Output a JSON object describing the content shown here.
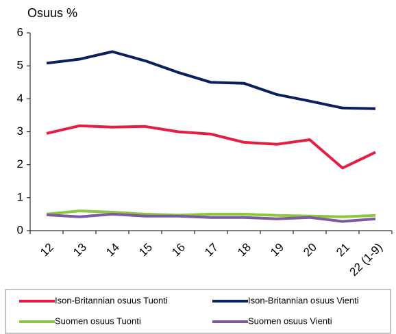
{
  "chart_data": {
    "type": "line",
    "y_label": "Osuus %",
    "categories": [
      "12",
      "13",
      "14",
      "15",
      "16",
      "17",
      "18",
      "19",
      "20",
      "21",
      "22 (1-9)"
    ],
    "series": [
      {
        "name": "Ison-Britannian osuus Tuonti",
        "color": "#e31e44",
        "values": [
          2.95,
          3.18,
          3.14,
          3.16,
          3.0,
          2.93,
          2.68,
          2.62,
          2.76,
          1.9,
          2.38
        ]
      },
      {
        "name": "Ison-Britannian osuus Vienti",
        "color": "#0b1f5e",
        "values": [
          5.08,
          5.2,
          5.43,
          5.15,
          4.8,
          4.5,
          4.47,
          4.13,
          3.93,
          3.72,
          3.7
        ]
      },
      {
        "name": "Suomen osuus Tuonti",
        "color": "#8dc63f",
        "values": [
          0.5,
          0.6,
          0.56,
          0.5,
          0.47,
          0.5,
          0.5,
          0.46,
          0.44,
          0.42,
          0.46
        ]
      },
      {
        "name": "Suomen osuus Vienti",
        "color": "#7e5ba0",
        "values": [
          0.48,
          0.42,
          0.5,
          0.44,
          0.44,
          0.4,
          0.4,
          0.36,
          0.4,
          0.28,
          0.36
        ]
      }
    ],
    "ylim": [
      0,
      6
    ],
    "yticks": [
      0,
      1,
      2,
      3,
      4,
      5,
      6
    ]
  }
}
